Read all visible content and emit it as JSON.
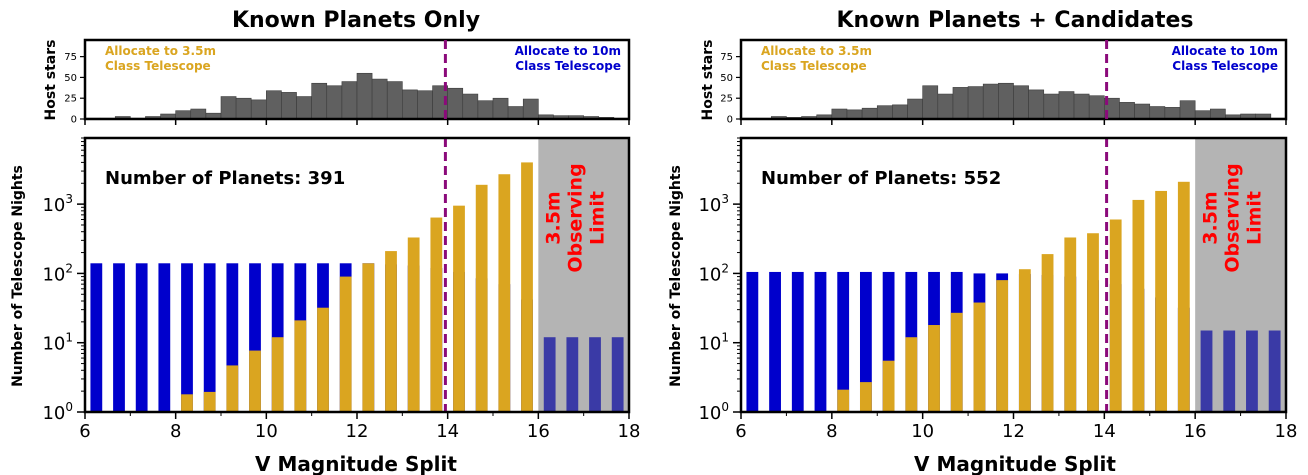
{
  "x_label": "V Magnitude Split",
  "hist_ylabel": "Host stars",
  "main_ylabel": "Number of Telescope Nights",
  "alloc_small": [
    "Allocate to 3.5m",
    "Class Telescope"
  ],
  "alloc_large": [
    "Allocate to 10m",
    "Class Telescope"
  ],
  "limit_text": [
    "3.5m",
    "Observing",
    "Limit"
  ],
  "colors": {
    "blue": "#0000cc",
    "gold": "#daa520",
    "hist": "#606060",
    "shade": "#b4b4b4",
    "split_line": "#8b0a7a",
    "limit_text": "#ff0000"
  },
  "chart_data": [
    {
      "type": "bar",
      "title": "Known Planets Only",
      "count_label": "Number of Planets: 391",
      "split_line_x": 13.95,
      "observing_limit_x": 16,
      "xlim": [
        6,
        18
      ],
      "xticks": [
        6,
        8,
        10,
        12,
        14,
        16,
        18
      ],
      "hist": {
        "ylabel": "Host stars",
        "yticks": [
          0,
          25,
          50,
          75
        ],
        "ylim": [
          0,
          95
        ],
        "bin_width": 0.333,
        "bins": [
          6,
          6.333,
          6.667,
          7.0,
          7.333,
          7.667,
          8.0,
          8.333,
          8.667,
          9.0,
          9.333,
          9.667,
          10.0,
          10.333,
          10.667,
          11.0,
          11.333,
          11.667,
          12.0,
          12.333,
          12.667,
          13.0,
          13.333,
          13.667,
          14.0,
          14.333,
          14.667,
          15.0,
          15.333,
          15.667,
          16.0,
          16.333,
          16.667,
          17.0,
          17.333,
          17.667
        ],
        "counts": [
          1,
          1,
          3,
          1,
          3,
          6,
          10,
          12,
          7,
          27,
          25,
          23,
          34,
          32,
          27,
          43,
          40,
          45,
          55,
          48,
          45,
          35,
          34,
          40,
          37,
          30,
          22,
          25,
          15,
          24,
          5,
          4,
          4,
          3,
          2,
          1
        ]
      },
      "ylim": [
        1,
        9000
      ],
      "yscale": "log",
      "yticks": [
        "10^0",
        "10^1",
        "10^2",
        "10^3"
      ],
      "x": [
        6.25,
        6.75,
        7.25,
        7.75,
        8.25,
        8.75,
        9.25,
        9.75,
        10.25,
        10.75,
        11.25,
        11.75,
        12.25,
        12.75,
        13.25,
        13.75,
        14.25,
        14.75,
        15.25,
        15.75,
        16.25,
        16.75,
        17.25,
        17.75
      ],
      "series": [
        {
          "name": "Allocate to 10m Class Telescope",
          "values": [
            140,
            140,
            140,
            140,
            140,
            140,
            140,
            140,
            140,
            140,
            140,
            140,
            140,
            135,
            130,
            120,
            105,
            85,
            70,
            42,
            12,
            12,
            12,
            12
          ]
        },
        {
          "name": "Allocate to 3.5m Class Telescope",
          "values": [
            null,
            null,
            null,
            null,
            1.8,
            1.95,
            4.7,
            7.7,
            12,
            21,
            32,
            90,
            140,
            210,
            330,
            640,
            950,
            1900,
            2700,
            4000,
            null,
            null,
            null,
            null
          ]
        }
      ]
    },
    {
      "type": "bar",
      "title": "Known Planets + Candidates",
      "count_label": "Number of Planets: 552",
      "split_line_x": 14.05,
      "observing_limit_x": 16,
      "xlim": [
        6,
        18
      ],
      "xticks": [
        6,
        8,
        10,
        12,
        14,
        16,
        18
      ],
      "hist": {
        "ylabel": "Host stars",
        "yticks": [
          0,
          25,
          50,
          75
        ],
        "ylim": [
          0,
          95
        ],
        "bin_width": 0.333,
        "bins": [
          6,
          6.333,
          6.667,
          7.0,
          7.333,
          7.667,
          8.0,
          8.333,
          8.667,
          9.0,
          9.333,
          9.667,
          10.0,
          10.333,
          10.667,
          11.0,
          11.333,
          11.667,
          12.0,
          12.333,
          12.667,
          13.0,
          13.333,
          13.667,
          14.0,
          14.333,
          14.667,
          15.0,
          15.333,
          15.667,
          16.0,
          16.333,
          16.667,
          17.0,
          17.333,
          17.667
        ],
        "counts": [
          1,
          1,
          3,
          2,
          3,
          5,
          12,
          11,
          13,
          16,
          17,
          24,
          40,
          30,
          38,
          39,
          42,
          43,
          40,
          35,
          30,
          33,
          30,
          28,
          25,
          20,
          18,
          15,
          14,
          22,
          10,
          12,
          5,
          6,
          6,
          1
        ]
      },
      "ylim": [
        1,
        9000
      ],
      "yscale": "log",
      "yticks": [
        "10^0",
        "10^1",
        "10^2",
        "10^3"
      ],
      "x": [
        6.25,
        6.75,
        7.25,
        7.75,
        8.25,
        8.75,
        9.25,
        9.75,
        10.25,
        10.75,
        11.25,
        11.75,
        12.25,
        12.75,
        13.25,
        13.75,
        14.25,
        14.75,
        15.25,
        15.75,
        16.25,
        16.75,
        17.25,
        17.75
      ],
      "series": [
        {
          "name": "Allocate to 10m Class Telescope",
          "values": [
            105,
            105,
            105,
            105,
            105,
            105,
            105,
            105,
            105,
            105,
            100,
            100,
            98,
            95,
            90,
            80,
            70,
            60,
            45,
            32,
            15,
            15,
            15,
            15
          ]
        },
        {
          "name": "Allocate to 3.5m Class Telescope",
          "values": [
            null,
            null,
            null,
            null,
            2.1,
            2.7,
            5.5,
            12,
            18,
            27,
            38,
            80,
            115,
            190,
            330,
            380,
            600,
            1150,
            1550,
            2100,
            null,
            null,
            null,
            null
          ]
        }
      ]
    }
  ]
}
